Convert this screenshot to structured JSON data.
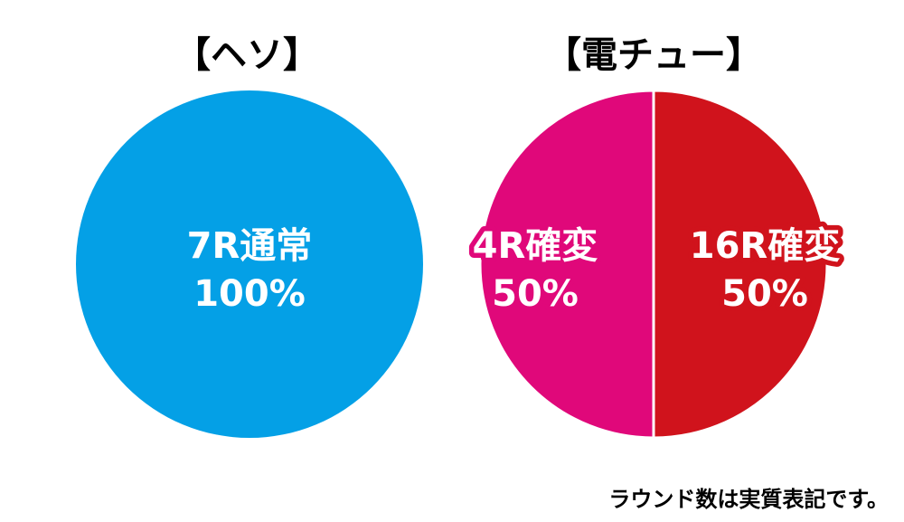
{
  "chart_data": [
    {
      "type": "pie",
      "title": "【ヘソ】",
      "slices": [
        {
          "label": "7R通常",
          "value": 100,
          "value_text": "100%",
          "color": "#04a0e6",
          "label_style": "plain"
        }
      ]
    },
    {
      "type": "pie",
      "title": "【電チュー】",
      "slices": [
        {
          "label": "16R確変",
          "value": 50,
          "value_text": "50%",
          "color": "#d0131c",
          "label_style": "outlined"
        },
        {
          "label": "4R確変",
          "value": 50,
          "value_text": "50%",
          "color": "#e0087a",
          "label_style": "outlined"
        }
      ]
    }
  ],
  "footnote": "ラウンド数は実質表記です。"
}
